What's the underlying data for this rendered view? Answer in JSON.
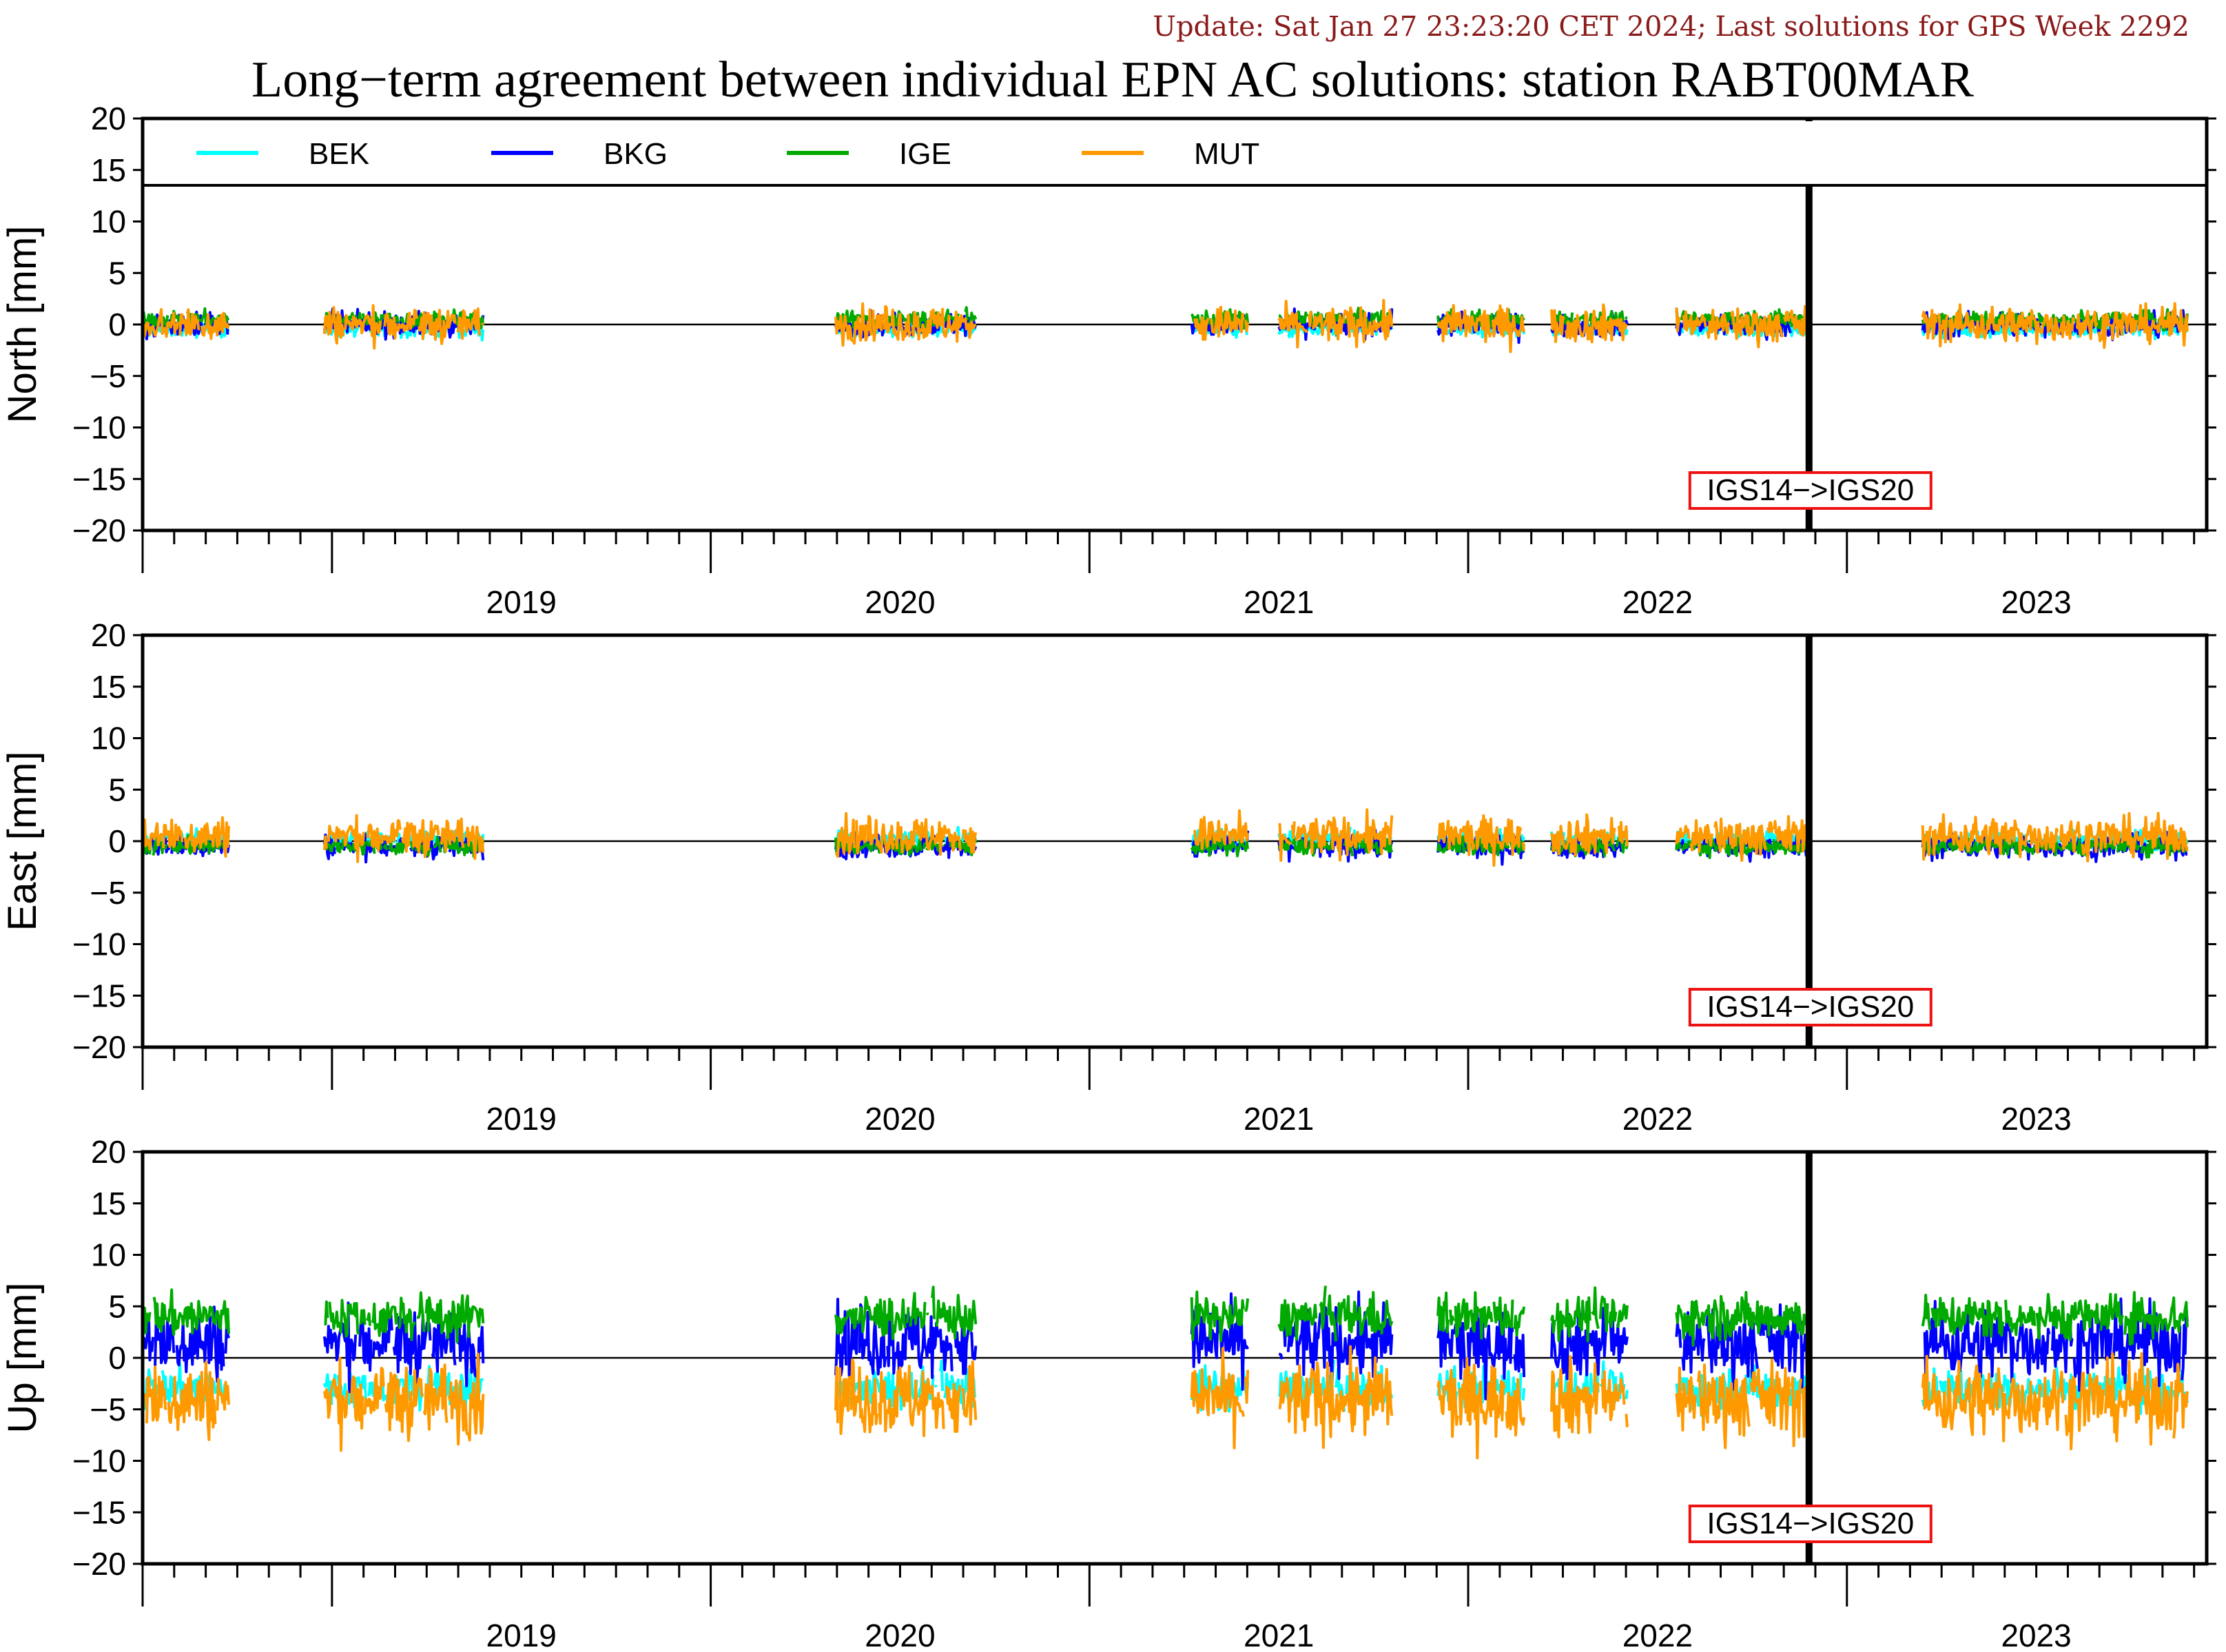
{
  "header": {
    "update": "Update: Sat Jan 27 23:23:20 CET 2024; Last solutions for GPS Week 2292",
    "title": "Long−term agreement between individual EPN AC solutions: station RABT00MAR"
  },
  "chart_data": {
    "type": "line",
    "x_range": [
      2018.5,
      2023.95
    ],
    "year_labels": [
      "2019",
      "2020",
      "2021",
      "2022",
      "2023"
    ],
    "yticks": [
      20,
      15,
      10,
      5,
      0,
      -5,
      -10,
      -15,
      -20
    ],
    "ytick_labels": [
      "20",
      "15",
      "10",
      "5",
      "0",
      "−5",
      "−10",
      "−15",
      "−20"
    ],
    "ylim": [
      -20,
      20
    ],
    "legend": {
      "placement": "top",
      "entries": [
        {
          "name": "BEK",
          "color": "#00ffff"
        },
        {
          "name": "BKG",
          "color": "#0000ff"
        },
        {
          "name": "IGE",
          "color": "#00aa00"
        },
        {
          "name": "MUT",
          "color": "#ff9900"
        }
      ]
    },
    "reference_change": {
      "x": 2022.9,
      "label": "IGS14−>IGS20"
    },
    "panels": [
      {
        "ylabel": "North [mm]",
        "has_legend": true
      },
      {
        "ylabel": "East [mm]",
        "has_legend": false
      },
      {
        "ylabel": "Up [mm]",
        "has_legend": false
      }
    ],
    "series": [
      {
        "name": "BEK",
        "color": "#00ffff",
        "segments": [
          [
            2018.5,
            2018.73
          ],
          [
            2018.98,
            2019.4
          ],
          [
            2020.33,
            2020.7
          ],
          [
            2021.27,
            2021.42
          ],
          [
            2021.5,
            2021.8
          ],
          [
            2021.92,
            2022.15
          ],
          [
            2022.22,
            2022.42
          ],
          [
            2022.55,
            2022.9
          ],
          [
            2023.2,
            2023.9
          ]
        ],
        "offsets": {
          "North": -0.5,
          "East": 0.2,
          "Up": -3.0
        },
        "noise": {
          "North": 0.5,
          "East": 0.6,
          "Up": 1.4
        }
      },
      {
        "name": "BKG",
        "color": "#0000ff",
        "segments": [
          [
            2018.5,
            2018.73
          ],
          [
            2018.98,
            2019.4
          ],
          [
            2020.33,
            2020.7
          ],
          [
            2021.27,
            2021.42
          ],
          [
            2021.5,
            2021.8
          ],
          [
            2021.92,
            2022.15
          ],
          [
            2022.22,
            2022.42
          ],
          [
            2022.55,
            2022.9
          ],
          [
            2023.2,
            2023.9
          ]
        ],
        "offsets": {
          "North": 0.0,
          "East": -0.5,
          "Up": 1.5
        },
        "noise": {
          "North": 0.8,
          "East": 0.8,
          "Up": 2.5
        }
      },
      {
        "name": "IGE",
        "color": "#00aa00",
        "segments": [
          [
            2018.5,
            2018.73
          ],
          [
            2018.98,
            2019.4
          ],
          [
            2020.33,
            2020.7
          ],
          [
            2021.27,
            2021.42
          ],
          [
            2021.5,
            2021.8
          ],
          [
            2021.92,
            2022.15
          ],
          [
            2022.22,
            2022.42
          ],
          [
            2022.55,
            2022.9
          ],
          [
            2023.2,
            2023.9
          ]
        ],
        "offsets": {
          "North": 0.5,
          "East": -0.5,
          "Up": 4.0
        },
        "noise": {
          "North": 0.6,
          "East": 0.6,
          "Up": 1.5
        }
      },
      {
        "name": "MUT",
        "color": "#ff9900",
        "segments": [
          [
            2018.5,
            2018.73
          ],
          [
            2018.98,
            2019.4
          ],
          [
            2020.33,
            2020.7
          ],
          [
            2021.27,
            2021.42
          ],
          [
            2021.5,
            2021.8
          ],
          [
            2021.92,
            2022.15
          ],
          [
            2022.22,
            2022.42
          ],
          [
            2022.55,
            2022.9
          ],
          [
            2023.2,
            2023.9
          ]
        ],
        "offsets": {
          "North": 0.0,
          "East": 0.5,
          "Up": -4.0
        },
        "noise": {
          "North": 1.2,
          "East": 1.3,
          "Up": 2.6
        }
      }
    ]
  }
}
